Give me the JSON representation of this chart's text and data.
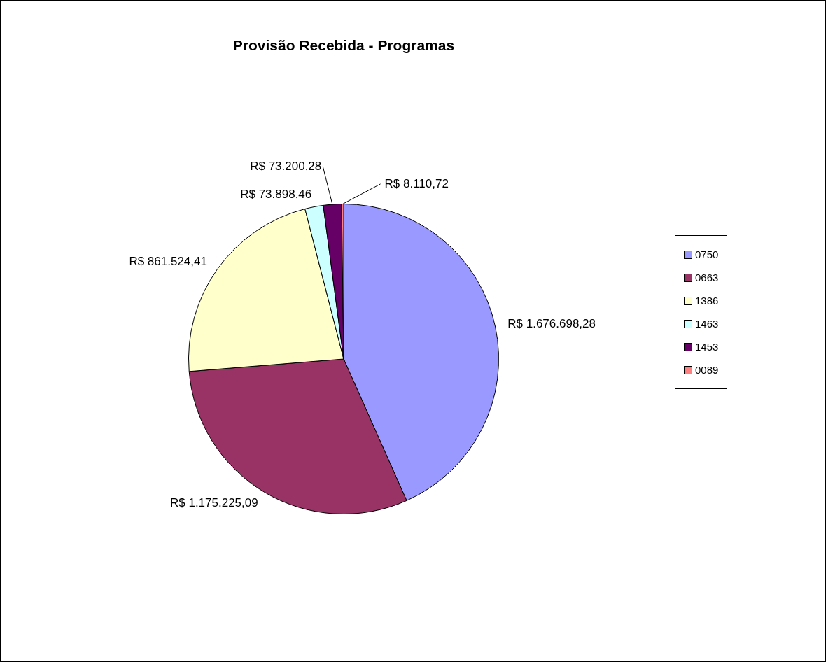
{
  "chart_data": {
    "type": "pie",
    "title": "Provisão Recebida - Programas",
    "categories": [
      "0750",
      "0663",
      "1386",
      "1463",
      "1453",
      "0089"
    ],
    "values": [
      1676698.28,
      1175225.09,
      861524.41,
      73898.46,
      73200.28,
      8110.72
    ],
    "colors": [
      "#9999ff",
      "#993366",
      "#ffffcc",
      "#ccffff",
      "#660066",
      "#ff8080"
    ],
    "value_labels": [
      "R$ 1.676.698,28",
      "R$ 1.175.225,09",
      "R$ 861.524,41",
      "R$ 73.898,46",
      "R$ 73.200,28",
      "R$ 8.110,72"
    ],
    "legend": "right"
  }
}
